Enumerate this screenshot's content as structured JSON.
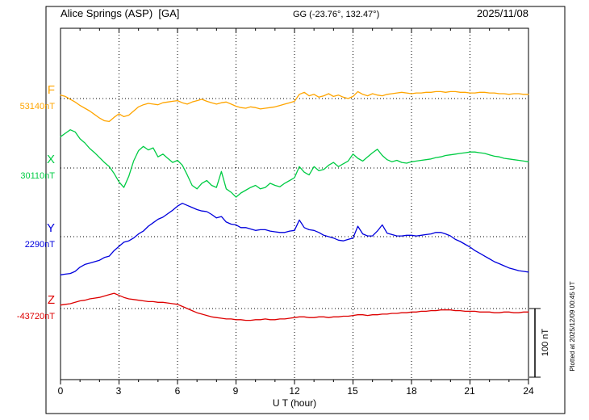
{
  "header": {
    "station_title": "Alice Springs (ASP)  [GA]",
    "coordinates": "GG (-23.76°, 132.47°)",
    "date": "2025/11/08"
  },
  "axis": {
    "x_label": "U T (hour)",
    "ticks": [
      "0",
      "3",
      "6",
      "9",
      "12",
      "15",
      "18",
      "21",
      "24"
    ]
  },
  "scale_bar": {
    "label": "100 nT",
    "nT": 100
  },
  "plotted_at": "Plotted at 2025/12/09 00:45 UT",
  "channels": [
    {
      "label": "F",
      "value_label": "53140nT",
      "color": "#FFA500"
    },
    {
      "label": "X",
      "value_label": "30110nT",
      "color": "#00CC44"
    },
    {
      "label": "Y",
      "value_label": "2290nT",
      "color": "#0000DD"
    },
    {
      "label": "Z",
      "value_label": "-43720nT",
      "color": "#DD0000"
    }
  ],
  "chart_data": {
    "type": "line",
    "title": "Alice Springs (ASP) [GA] magnetogram, 2025/11/08",
    "xlabel": "U T (hour)",
    "x_range_hours": [
      0,
      24
    ],
    "x_tick_interval_hours": 3,
    "sample_interval_hours": 0.25,
    "scale_reference_nT": 100,
    "grid": "dotted",
    "legend_position": "left-baselines",
    "series": [
      {
        "name": "F",
        "color": "#FFA500",
        "baseline_nT": 53140,
        "offsets_nT": [
          5,
          3,
          -1,
          -5,
          -10,
          -14,
          -18,
          -23,
          -28,
          -32,
          -33,
          -27,
          -22,
          -26,
          -24,
          -18,
          -12,
          -9,
          -7,
          -8,
          -9,
          -6,
          -5,
          -4,
          -3,
          -6,
          -8,
          -5,
          -3,
          -1,
          -4,
          -6,
          -8,
          -6,
          -5,
          -8,
          -11,
          -13,
          -14,
          -12,
          -13,
          -15,
          -14,
          -13,
          -12,
          -10,
          -8,
          -6,
          -4,
          6,
          9,
          4,
          6,
          2,
          4,
          7,
          3,
          5,
          2,
          0,
          3,
          10,
          6,
          4,
          7,
          5,
          4,
          6,
          7,
          8,
          9,
          8,
          7,
          8,
          8,
          9,
          9,
          10,
          10,
          9,
          10,
          10,
          9,
          9,
          8,
          8,
          9,
          9,
          8,
          8,
          7,
          7,
          6,
          7,
          7,
          6,
          6
        ]
      },
      {
        "name": "X",
        "color": "#00CC44",
        "baseline_nT": 30110,
        "offsets_nT": [
          45,
          50,
          55,
          52,
          42,
          36,
          28,
          22,
          15,
          8,
          2,
          -8,
          -20,
          -28,
          -12,
          10,
          25,
          31,
          26,
          29,
          16,
          20,
          14,
          8,
          11,
          4,
          -10,
          -25,
          -30,
          -22,
          -18,
          -25,
          -28,
          -5,
          -30,
          -35,
          -42,
          -36,
          -32,
          -28,
          -25,
          -30,
          -28,
          -22,
          -25,
          -27,
          -22,
          -18,
          -14,
          2,
          -6,
          -10,
          2,
          -4,
          -2,
          4,
          8,
          2,
          6,
          10,
          20,
          14,
          10,
          16,
          22,
          27,
          18,
          12,
          9,
          11,
          8,
          7,
          9,
          10,
          11,
          12,
          13,
          15,
          16,
          18,
          19,
          20,
          21,
          22,
          23,
          23,
          22,
          21,
          19,
          17,
          16,
          14,
          13,
          12,
          11,
          10,
          9
        ]
      },
      {
        "name": "Y",
        "color": "#0000DD",
        "baseline_nT": 2290,
        "offsets_nT": [
          -55,
          -54,
          -53,
          -50,
          -44,
          -40,
          -38,
          -36,
          -34,
          -30,
          -28,
          -20,
          -14,
          -8,
          -6,
          -2,
          4,
          8,
          15,
          20,
          25,
          28,
          33,
          38,
          44,
          48,
          45,
          42,
          39,
          37,
          36,
          32,
          27,
          29,
          21,
          18,
          17,
          13,
          13,
          11,
          9,
          10,
          10,
          8,
          7,
          6,
          6,
          8,
          9,
          24,
          13,
          10,
          9,
          6,
          2,
          0,
          -2,
          -5,
          -6,
          -4,
          -2,
          15,
          4,
          1,
          1,
          8,
          17,
          5,
          3,
          1,
          1,
          2,
          2,
          1,
          2,
          3,
          4,
          6,
          6,
          4,
          1,
          -4,
          -7,
          -11,
          -15,
          -20,
          -24,
          -28,
          -32,
          -36,
          -39,
          -42,
          -45,
          -47,
          -49,
          -50,
          -51
        ]
      },
      {
        "name": "Z",
        "color": "#DD0000",
        "baseline_nT": -43720,
        "offsets_nT": [
          5,
          6,
          7,
          9,
          11,
          12,
          14,
          15,
          16,
          18,
          20,
          22,
          19,
          16,
          14,
          13,
          12,
          11,
          10,
          10,
          9,
          9,
          8,
          7,
          6,
          3,
          0,
          -3,
          -6,
          -8,
          -10,
          -12,
          -13,
          -14,
          -15,
          -15,
          -16,
          -16,
          -17,
          -17,
          -16,
          -16,
          -15,
          -16,
          -16,
          -15,
          -15,
          -14,
          -13,
          -12,
          -12,
          -13,
          -13,
          -12,
          -12,
          -13,
          -12,
          -12,
          -11,
          -11,
          -10,
          -9,
          -9,
          -10,
          -9,
          -9,
          -8,
          -8,
          -7,
          -7,
          -6,
          -6,
          -5,
          -5,
          -4,
          -4,
          -3,
          -3,
          -2,
          -2,
          -2,
          -3,
          -3,
          -4,
          -4,
          -4,
          -5,
          -5,
          -5,
          -6,
          -6,
          -5,
          -5,
          -6,
          -6,
          -5,
          -5
        ]
      }
    ]
  }
}
